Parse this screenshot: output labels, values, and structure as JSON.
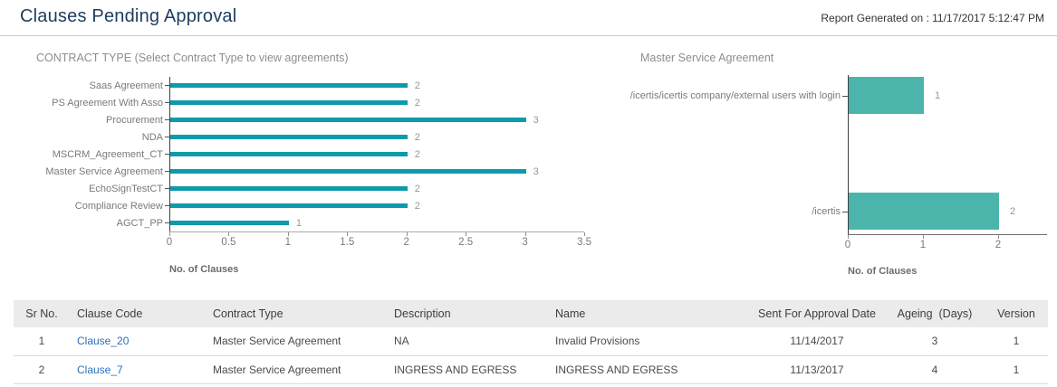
{
  "header": {
    "title": "Clauses Pending Approval",
    "report_generated": "Report Generated on : 11/17/2017 5:12:47 PM"
  },
  "colors": {
    "left_bar": "#0f9aac",
    "right_bar": "#4cb5ab",
    "link": "#2a6fba",
    "title_text": "#1d3c5e"
  },
  "chart_data": [
    {
      "type": "bar",
      "orientation": "horizontal",
      "title": "CONTRACT TYPE (Select Contract Type to view agreements)",
      "categories": [
        "Saas Agreement",
        "PS Agreement With Asso",
        "Procurement",
        "NDA",
        "MSCRM_Agreement_CT",
        "Master Service Agreement",
        "EchoSignTestCT",
        "Compliance Review",
        "AGCT_PP"
      ],
      "values": [
        2,
        2,
        3,
        2,
        2,
        3,
        2,
        2,
        1
      ],
      "xlabel": "No. of Clauses",
      "xlim": [
        0,
        3.5
      ],
      "xticks": [
        0,
        0.5,
        1,
        1.5,
        2,
        2.5,
        3,
        3.5
      ],
      "grid": false,
      "legend": null
    },
    {
      "type": "bar",
      "orientation": "horizontal",
      "title": "Master Service Agreement",
      "categories": [
        "/icertis/icertis company/external users with login",
        "/icertis"
      ],
      "values": [
        1,
        2
      ],
      "xlabel": "No. of Clauses",
      "xlim": [
        0,
        2.65
      ],
      "xticks": [
        0,
        1,
        2
      ],
      "grid": false,
      "legend": null
    }
  ],
  "table": {
    "columns": [
      "Sr No.",
      "Clause Code",
      "Contract Type",
      "Description",
      "Name",
      "Sent For Approval Date",
      "Ageing  (Days)",
      "Version"
    ],
    "link_column": 1,
    "rows": [
      [
        "1",
        "Clause_20",
        "Master Service Agreement",
        "NA",
        "Invalid Provisions",
        "11/14/2017",
        "3",
        "1"
      ],
      [
        "2",
        "Clause_7",
        "Master Service Agreement",
        "INGRESS AND EGRESS",
        "INGRESS AND EGRESS",
        "11/13/2017",
        "4",
        "1"
      ]
    ]
  }
}
